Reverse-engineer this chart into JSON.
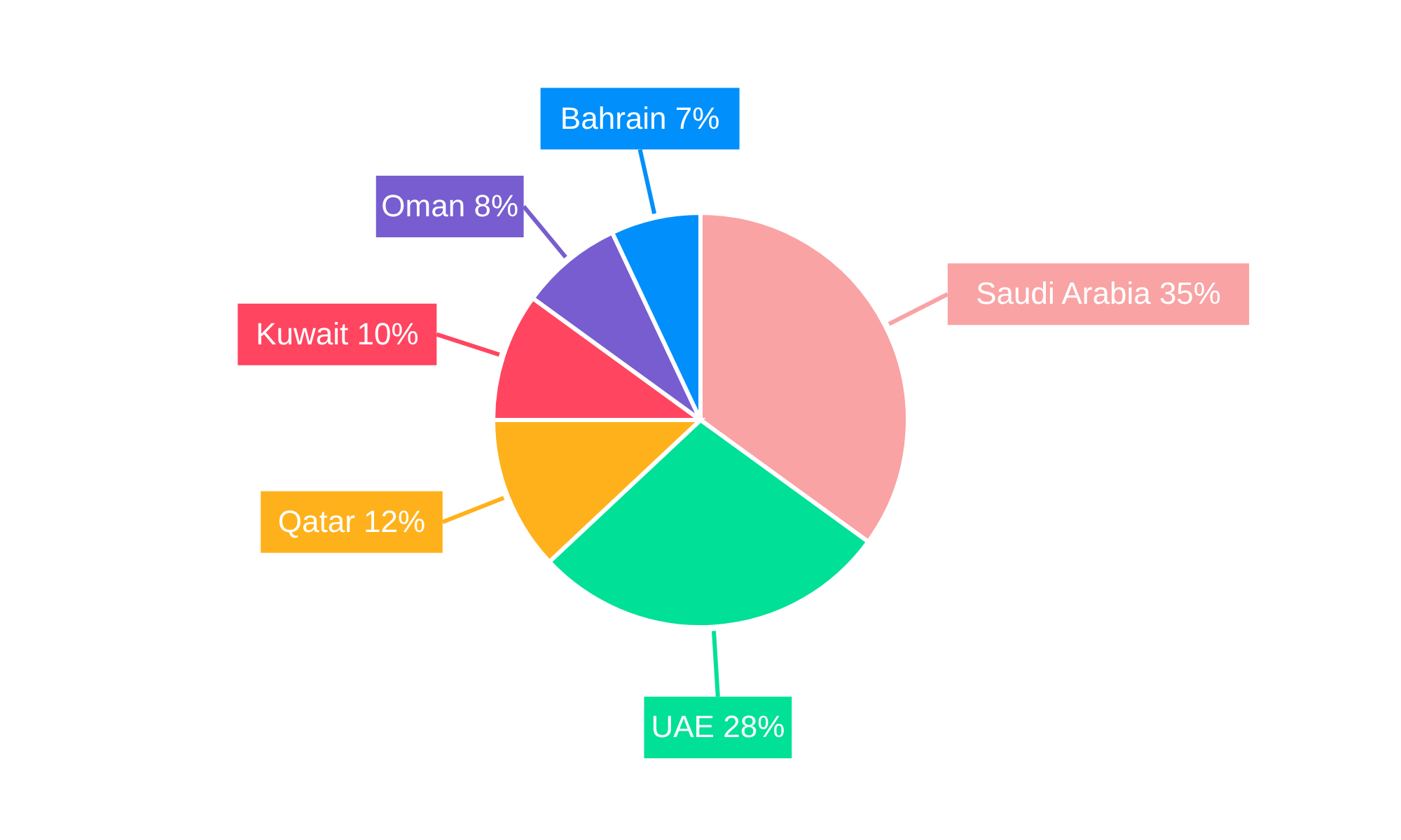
{
  "chart_data": {
    "type": "pie",
    "categories": [
      "Saudi Arabia",
      "UAE",
      "Qatar",
      "Kuwait",
      "Oman",
      "Bahrain"
    ],
    "values": [
      35,
      28,
      12,
      10,
      8,
      7
    ],
    "value_labels": [
      "35%",
      "28%",
      "12%",
      "10%",
      "8%",
      "7%"
    ],
    "colors": [
      "#f9a3a4",
      "#00e096",
      "#ffb11b",
      "#ff4560",
      "#775dd0",
      "#008ffb"
    ]
  }
}
